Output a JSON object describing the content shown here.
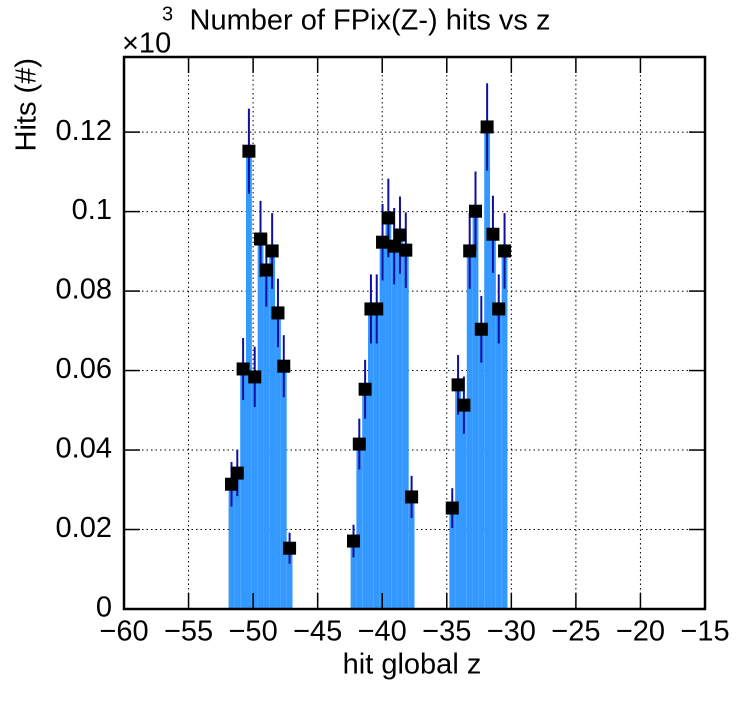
{
  "chart_data": {
    "type": "histogram",
    "title": "Number of FPix(Z-) hits vs z",
    "x_label": "hit global z",
    "y_label": "Hits (#)",
    "y_multiplier_base": "×10",
    "y_multiplier_exponent": "3",
    "bins": [
      -51.9,
      -51.45,
      -51.0,
      -50.55,
      -50.1,
      -49.65,
      -49.2,
      -48.75,
      -48.3,
      -47.85,
      -47.4,
      -46.95,
      -46.5,
      -46.05,
      -45.6,
      -45.15,
      -44.7,
      -44.25,
      -43.8,
      -43.35,
      -42.9,
      -42.45,
      -42.0,
      -41.55,
      -41.1,
      -40.65,
      -40.2,
      -39.75,
      -39.3,
      -38.85,
      -38.4,
      -37.95,
      -37.5,
      -37.05,
      -36.6,
      -36.15,
      -35.7,
      -35.25,
      -34.8,
      -34.35,
      -33.9,
      -33.45,
      -33.0,
      -32.55,
      -32.1,
      -31.65,
      -31.2,
      -30.75,
      -30.3
    ],
    "values": [
      0.0314,
      0.0342,
      0.0604,
      0.1152,
      0.0584,
      0.0931,
      0.0853,
      0.0901,
      0.0745,
      0.0611,
      0.0153,
      0,
      0,
      0,
      0,
      0,
      0,
      0,
      0,
      0,
      0,
      0.0171,
      0.0415,
      0.0553,
      0.0755,
      0.0755,
      0.0923,
      0.0984,
      0.0913,
      0.0941,
      0.0903,
      0.0282,
      0,
      0,
      0,
      0,
      0,
      0,
      0.0254,
      0.0564,
      0.0513,
      0.0901,
      0.1001,
      0.0704,
      0.1213,
      0.0943,
      0.0755,
      0.0901
    ],
    "errors": [
      0.0056,
      0.0058,
      0.0078,
      0.0107,
      0.0076,
      0.0096,
      0.0092,
      0.0095,
      0.0086,
      0.0078,
      0.0039,
      0,
      0,
      0,
      0,
      0,
      0,
      0,
      0,
      0,
      0,
      0.0041,
      0.0064,
      0.0074,
      0.0087,
      0.0087,
      0.0096,
      0.0099,
      0.0096,
      0.0097,
      0.0095,
      0.0053,
      0,
      0,
      0,
      0,
      0,
      0,
      0.005,
      0.0075,
      0.0072,
      0.0095,
      0.01,
      0.0084,
      0.011,
      0.0097,
      0.0087,
      0.0095
    ],
    "color": "#3399ff",
    "error_color": "#1010a0",
    "marker_color": "#000000",
    "xlim": [
      -60,
      -15
    ],
    "ylim": [
      0,
      0.1389
    ],
    "xticks": [
      {
        "value": -60,
        "label": "−60"
      },
      {
        "value": -55,
        "label": "−55"
      },
      {
        "value": -50,
        "label": "−50"
      },
      {
        "value": -45,
        "label": "−45"
      },
      {
        "value": -40,
        "label": "−40"
      },
      {
        "value": -35,
        "label": "−35"
      },
      {
        "value": -30,
        "label": "−30"
      },
      {
        "value": -25,
        "label": "−25"
      },
      {
        "value": -20,
        "label": "−20"
      },
      {
        "value": -15,
        "label": "−15"
      }
    ],
    "yticks": [
      0,
      0.02,
      0.04,
      0.06,
      0.08,
      0.1,
      0.12
    ],
    "grid": true
  }
}
